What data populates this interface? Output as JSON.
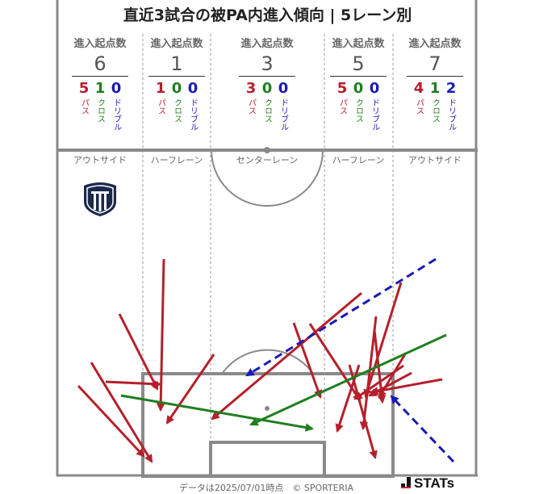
{
  "title": "直近3試合の被PA内進入傾向 | 5レーン別",
  "lanes": [
    {
      "name": "アウトサイド",
      "label": "進入起点数",
      "total": "6",
      "pass": {
        "value": "5",
        "label": "パス"
      },
      "cross": {
        "value": "1",
        "label": "クロス"
      },
      "dribble": {
        "value": "0",
        "label": "ドリブル"
      }
    },
    {
      "name": "ハーフレーン",
      "label": "進入起点数",
      "total": "1",
      "pass": {
        "value": "1",
        "label": "パス"
      },
      "cross": {
        "value": "0",
        "label": "クロス"
      },
      "dribble": {
        "value": "0",
        "label": "ドリブル"
      }
    },
    {
      "name": "センターレーン",
      "label": "進入起点数",
      "total": "3",
      "pass": {
        "value": "3",
        "label": "パス"
      },
      "cross": {
        "value": "0",
        "label": "クロス"
      },
      "dribble": {
        "value": "0",
        "label": "ドリブル"
      }
    },
    {
      "name": "ハーフレーン",
      "label": "進入起点数",
      "total": "5",
      "pass": {
        "value": "5",
        "label": "パス"
      },
      "cross": {
        "value": "0",
        "label": "クロス"
      },
      "dribble": {
        "value": "0",
        "label": "ドリブル"
      }
    },
    {
      "name": "アウトサイド",
      "label": "進入起点数",
      "total": "7",
      "pass": {
        "value": "4",
        "label": "パス"
      },
      "cross": {
        "value": "1",
        "label": "クロス"
      },
      "dribble": {
        "value": "2",
        "label": "ドリブル"
      }
    }
  ],
  "colors": {
    "pass": "#b5202b",
    "cross": "#1f7f1f",
    "dribble": "#1a1ab5",
    "pitch": "#8a8a8a"
  },
  "footer": "データは2025/07/01時点　© SPORTERIA",
  "brand": "STATs",
  "team_logo_icon": "team-crest-icon"
}
